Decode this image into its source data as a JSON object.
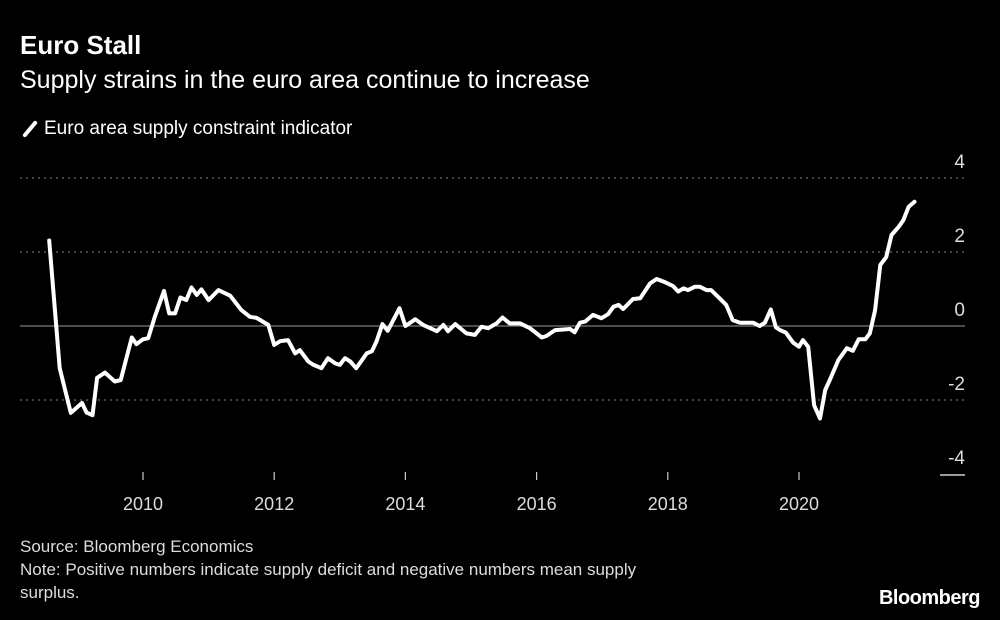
{
  "chart_data": {
    "type": "line",
    "title": "Euro Stall",
    "subtitle": "Supply strains in the euro area continue to increase",
    "xlabel": "",
    "ylabel": "",
    "ylim": [
      -4,
      4
    ],
    "xlim": [
      2008.3,
      2022.4
    ],
    "y_ticks": [
      "4",
      "2",
      "0",
      "-2",
      "-4"
    ],
    "x_ticks": [
      "2010",
      "2012",
      "2014",
      "2016",
      "2018",
      "2020"
    ],
    "grid": true,
    "legend_position": "top-left",
    "series": [
      {
        "name": "Euro area supply constraint indicator",
        "color": "#ffffff",
        "x": [
          2008.57,
          2008.73,
          2008.9,
          2009.07,
          2009.14,
          2009.23,
          2009.3,
          2009.42,
          2009.57,
          2009.66,
          2009.83,
          2009.9,
          2010.0,
          2010.08,
          2010.18,
          2010.32,
          2010.4,
          2010.49,
          2010.57,
          2010.66,
          2010.74,
          2010.82,
          2010.89,
          2011.0,
          2011.15,
          2011.33,
          2011.5,
          2011.63,
          2011.73,
          2011.91,
          2012.0,
          2012.09,
          2012.21,
          2012.32,
          2012.39,
          2012.52,
          2012.6,
          2012.72,
          2012.82,
          2012.93,
          2013.0,
          2013.08,
          2013.16,
          2013.25,
          2013.41,
          2013.49,
          2013.56,
          2013.65,
          2013.73,
          2013.91,
          2014.0,
          2014.15,
          2014.27,
          2014.48,
          2014.58,
          2014.65,
          2014.76,
          2014.93,
          2015.06,
          2015.16,
          2015.26,
          2015.39,
          2015.48,
          2015.59,
          2015.75,
          2015.9,
          2016.08,
          2016.15,
          2016.28,
          2016.51,
          2016.58,
          2016.66,
          2016.74,
          2016.86,
          2016.99,
          2017.09,
          2017.17,
          2017.25,
          2017.32,
          2017.47,
          2017.58,
          2017.73,
          2017.83,
          2017.96,
          2018.08,
          2018.16,
          2018.24,
          2018.31,
          2018.41,
          2018.49,
          2018.59,
          2018.66,
          2018.79,
          2018.89,
          2018.99,
          2019.1,
          2019.3,
          2019.4,
          2019.48,
          2019.57,
          2019.65,
          2019.71,
          2019.8,
          2019.91,
          2020.0,
          2020.06,
          2020.14,
          2020.23,
          2020.32,
          2020.4,
          2020.47,
          2020.6,
          2020.73,
          2020.82,
          2020.91,
          2021.01,
          2021.08,
          2021.16,
          2021.24,
          2021.33,
          2021.41,
          2021.52,
          2021.59,
          2021.67,
          2021.76
        ],
        "y": [
          2.31,
          -1.14,
          -2.35,
          -2.08,
          -2.34,
          -2.41,
          -1.4,
          -1.26,
          -1.5,
          -1.46,
          -0.31,
          -0.49,
          -0.36,
          -0.33,
          0.25,
          0.95,
          0.34,
          0.34,
          0.77,
          0.7,
          1.04,
          0.84,
          0.99,
          0.7,
          0.97,
          0.82,
          0.43,
          0.25,
          0.22,
          0.03,
          -0.51,
          -0.41,
          -0.38,
          -0.74,
          -0.65,
          -0.96,
          -1.05,
          -1.14,
          -0.87,
          -1.01,
          -1.05,
          -0.87,
          -0.96,
          -1.14,
          -0.74,
          -0.68,
          -0.42,
          0.05,
          -0.13,
          0.48,
          0.0,
          0.18,
          0.03,
          -0.14,
          0.03,
          -0.14,
          0.05,
          -0.2,
          -0.24,
          -0.02,
          -0.06,
          0.07,
          0.23,
          0.07,
          0.07,
          -0.06,
          -0.31,
          -0.27,
          -0.11,
          -0.08,
          -0.17,
          0.09,
          0.12,
          0.3,
          0.21,
          0.32,
          0.52,
          0.57,
          0.46,
          0.73,
          0.75,
          1.15,
          1.27,
          1.18,
          1.08,
          0.93,
          1.02,
          0.97,
          1.06,
          1.06,
          0.97,
          0.97,
          0.75,
          0.57,
          0.16,
          0.09,
          0.09,
          0.0,
          0.09,
          0.45,
          -0.04,
          -0.11,
          -0.18,
          -0.45,
          -0.56,
          -0.38,
          -0.56,
          -2.14,
          -2.5,
          -1.73,
          -1.46,
          -0.92,
          -0.6,
          -0.67,
          -0.36,
          -0.36,
          -0.2,
          0.43,
          1.65,
          1.86,
          2.46,
          2.68,
          2.86,
          3.22,
          3.36
        ]
      }
    ]
  },
  "footer": {
    "source": "Source: Bloomberg Economics",
    "note": "Note: Positive numbers indicate supply deficit and negative numbers mean supply",
    "note_cont": "surplus.",
    "logo": "Bloomberg"
  }
}
